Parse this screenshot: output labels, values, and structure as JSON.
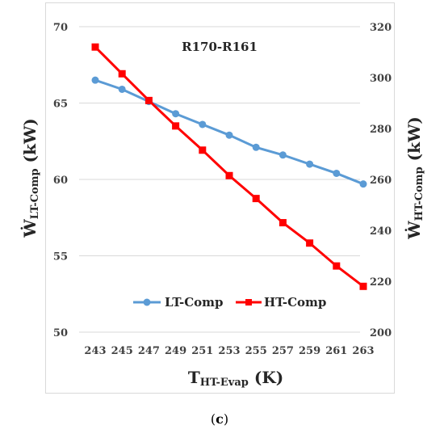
{
  "chart_data": {
    "type": "line",
    "title": "R170-R161",
    "x": [
      243,
      245,
      247,
      249,
      251,
      253,
      255,
      257,
      259,
      261,
      263
    ],
    "xlabel_main": "T",
    "xlabel_sub": "HT-Evap",
    "xlabel_unit": " (K)",
    "ylabel_left_main": "Ẇ",
    "ylabel_left_sub": "LT-Comp",
    "ylabel_left_unit": " (kW)",
    "ylabel_right_main": "Ẇ",
    "ylabel_right_sub": "HT-Comp",
    "ylabel_right_unit": " (kW)",
    "ylim_left": [
      50,
      70
    ],
    "yticks_left": [
      50,
      55,
      60,
      65,
      70
    ],
    "ylim_right": [
      200,
      320
    ],
    "yticks_right": [
      200,
      220,
      240,
      260,
      280,
      300,
      320
    ],
    "grid": "horizontal",
    "legend_placement": "bottom-center",
    "series": [
      {
        "name": "LT-Comp",
        "axis": "left",
        "color": "#5b9bd5",
        "marker": "circle",
        "values": [
          66.5,
          65.9,
          65.1,
          64.3,
          63.6,
          62.9,
          62.1,
          61.6,
          61.0,
          60.4,
          59.7
        ]
      },
      {
        "name": "HT-Comp",
        "axis": "right",
        "color": "#ff0000",
        "marker": "square",
        "values": [
          312,
          301.5,
          291,
          281,
          271.5,
          261.5,
          252.5,
          243,
          235,
          226,
          218
        ]
      }
    ]
  },
  "caption": {
    "open": "(",
    "letter": "c",
    "close": ")"
  }
}
